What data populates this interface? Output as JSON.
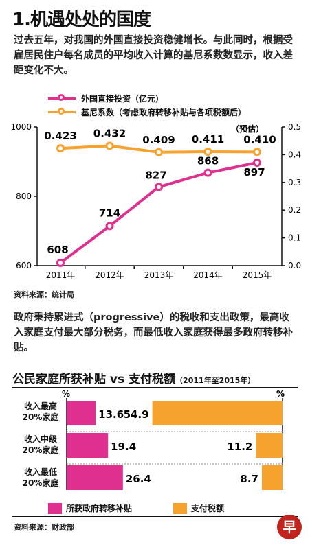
{
  "title": "1.机遇处处的国度",
  "paragraph1": "过去五年，对我国的外国直接投资稳健增长。与此同时，根据受雇居民住户每名成员的平均收入计算的基尼系数数显示，收入差距变化不大。",
  "source1": "资料来源：统计局",
  "paragraph2": "政府秉持累进式（progressive）的税收和支出政策，最高收入家庭支付最大部分税务，而最低收入家庭获得最多政府转移补贴。",
  "source2": "资料来源：财政部",
  "logo_text": "早",
  "colors": {
    "magenta": "#e0308f",
    "orange": "#f5a22e",
    "axis": "#111111"
  },
  "chart_data": [
    {
      "type": "line",
      "categories": [
        "2011年",
        "2012年",
        "2013年",
        "2014年",
        "2015年"
      ],
      "series": [
        {
          "name": "外国直接投资（亿元）",
          "axis": "left",
          "values": [
            608,
            714,
            827,
            868,
            897
          ],
          "color": "#e0308f"
        },
        {
          "name": "基尼系数（考虑政府转移补贴与各项税额后）",
          "axis": "right",
          "values": [
            0.423,
            0.432,
            0.409,
            0.411,
            0.41
          ],
          "labels": [
            "0.423",
            "0.432",
            "0.409",
            "0.411",
            "0.410"
          ],
          "color": "#f5a22e"
        }
      ],
      "ylim_left": [
        600,
        1000
      ],
      "yticks_left": [
        600,
        800,
        1000
      ],
      "ylim_right": [
        0,
        0.5
      ],
      "yticks_right": [
        "0.0",
        "0.1",
        "0.2",
        "0.3",
        "0.4",
        "0.5"
      ],
      "annotation": "（预估）",
      "legend_position": "top"
    },
    {
      "type": "bar",
      "title": "公民家庭所获补贴 vs 支付税额",
      "subtitle": "（2011年至2015年）",
      "unit": "%",
      "categories": [
        "收入最高\n20%家庭",
        "收入中级\n20%家庭",
        "收入最低\n20%家庭"
      ],
      "series": [
        {
          "name": "所获政府转移补贴",
          "values": [
            13.6,
            19.4,
            26.4
          ],
          "labels": [
            "13.6",
            "19.4",
            "26.4"
          ],
          "color": "#e0308f"
        },
        {
          "name": "支付税额",
          "values": [
            54.9,
            11.2,
            8.7
          ],
          "labels": [
            "54.9",
            "11.2",
            "8.7"
          ],
          "color": "#f5a22e"
        }
      ]
    }
  ]
}
